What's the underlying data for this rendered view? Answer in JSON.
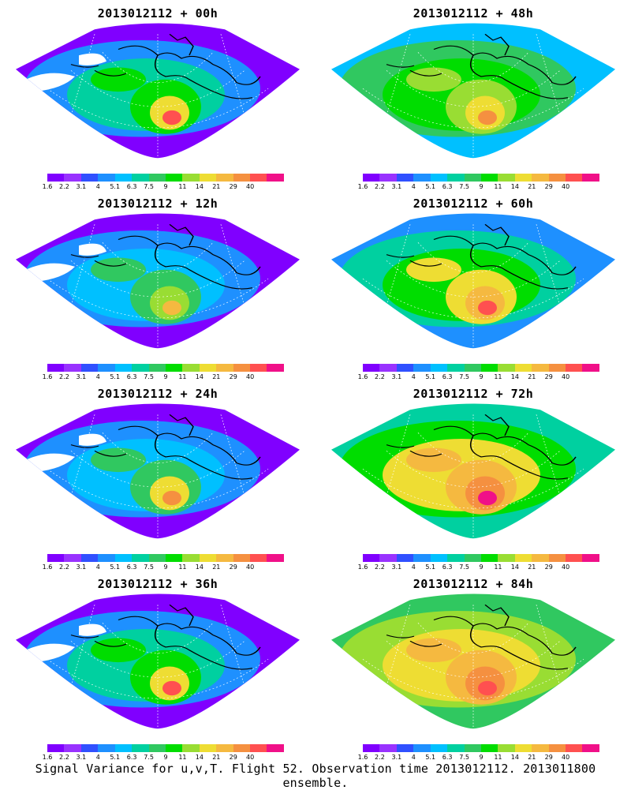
{
  "panels": [
    {
      "title": "2013012112 + 00h",
      "level": 0
    },
    {
      "title": "2013012112 + 48h",
      "level": 4
    },
    {
      "title": "2013012112 + 12h",
      "level": 1
    },
    {
      "title": "2013012112 + 60h",
      "level": 5
    },
    {
      "title": "2013012112 + 24h",
      "level": 2
    },
    {
      "title": "2013012112 + 72h",
      "level": 6
    },
    {
      "title": "2013012112 + 36h",
      "level": 3
    },
    {
      "title": "2013012112 + 84h",
      "level": 7
    }
  ],
  "legend": {
    "labels": [
      "1.6",
      "2.2",
      "3.1",
      "4",
      "5.1",
      "6.3",
      "7.5",
      "9",
      "11",
      "14",
      "21",
      "29",
      "40"
    ],
    "colors": [
      "#8000ff",
      "#9932ff",
      "#3050ff",
      "#1e90ff",
      "#00c0ff",
      "#00d0a0",
      "#30c860",
      "#00dd00",
      "#99dd33",
      "#eedd33",
      "#f5b940",
      "#f59040",
      "#ff5050",
      "#f01088"
    ]
  },
  "footer": "Signal Variance for u,v,T. Flight 52. Observation time 2013012112. 2013011800 ensemble."
}
